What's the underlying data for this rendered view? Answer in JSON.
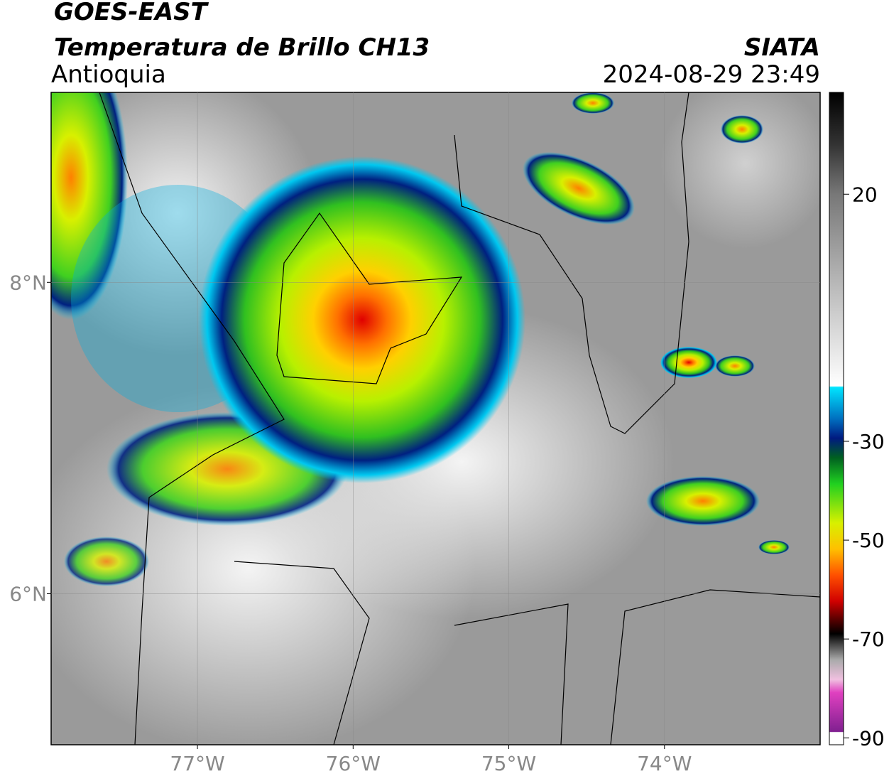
{
  "header": {
    "title": "GOES-EAST",
    "subtitle": "Temperatura de Brillo CH13",
    "region": "Antioquia",
    "source": "SIATA",
    "timestamp": "2024-08-29 23:49"
  },
  "map": {
    "xlim": [
      -77.94,
      -73.0
    ],
    "ylim": [
      5.03,
      9.22
    ],
    "xticks": [
      {
        "value": -77,
        "label": "77°W"
      },
      {
        "value": -76,
        "label": "76°W"
      },
      {
        "value": -75,
        "label": "75°W"
      },
      {
        "value": -74,
        "label": "74°W"
      }
    ],
    "yticks": [
      {
        "value": 6,
        "label": "6°N"
      },
      {
        "value": 8,
        "label": "8°N"
      }
    ],
    "grid": true
  },
  "colorbar": {
    "ylim": [
      -91.4,
      40.6
    ],
    "yticks": [
      20,
      -30,
      -50,
      -70,
      -90
    ]
  }
}
